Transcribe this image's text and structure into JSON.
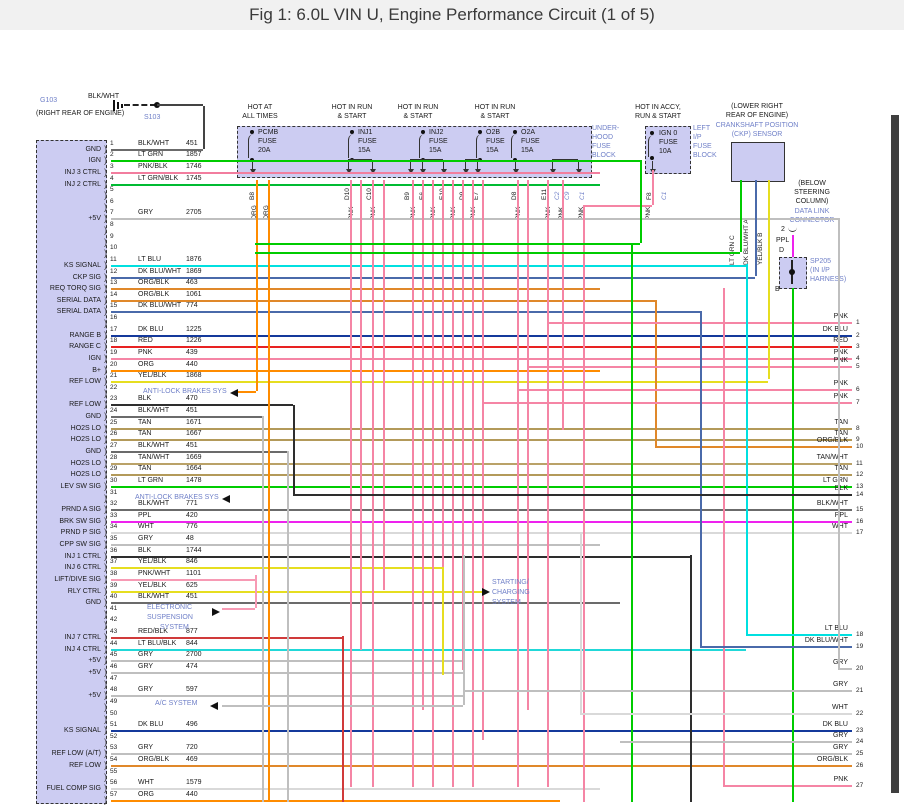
{
  "title": "Fig 1: 6.0L VIN U, Engine Performance Circuit (1 of 5)",
  "colors": {
    "BLK/WHT": "#6b6b6b",
    "BLK": "#2e2e2e",
    "LT GRN": "#00cc00",
    "LT GRN/BLK": "#00bb33",
    "PNK": "#f585a5",
    "PNK/BLK": "#f27d9e",
    "PNK/WHT": "#f79ab4",
    "GRY": "#bfbfbf",
    "LT BLU": "#00e0e0",
    "LT BLU/BLK": "#21d8d8",
    "DK BLU/WHT": "#4a6aaa",
    "DK BLU": "#14399b",
    "ORG": "#ff8c00",
    "ORG/BLK": "#e0882a",
    "RED": "#e82222",
    "RED/BLK": "#d03a3a",
    "YEL/BLK": "#e6de20",
    "TAN": "#b39a5a",
    "TAN/WHT": "#baa268",
    "PPL": "#ee22ee",
    "WHT": "#d9d9d9"
  },
  "ground": {
    "id": "G103",
    "loc": "(RIGHT REAR OF ENGINE)",
    "wire": "BLK/WHT",
    "splice": "S103"
  },
  "power_headers": {
    "hot_all": [
      "HOT AT",
      "ALL TIMES"
    ],
    "hot_run": [
      "HOT IN RUN",
      "& START"
    ],
    "hot_accy": [
      "HOT IN ACCY,",
      "RUN & START"
    ]
  },
  "tags": {
    "fuse": "FUSE",
    "pnk": "PNK",
    "org": "ORG"
  },
  "fuse_block": {
    "label": [
      "UNDER-",
      "HOOD",
      "FUSE",
      "BLOCK"
    ],
    "fuses": [
      {
        "name": "PCMB",
        "amp": "20A"
      },
      {
        "name": "INJ1",
        "amp": "15A"
      },
      {
        "name": "INJ2",
        "amp": "15A"
      },
      {
        "name": "O2B",
        "amp": "15A"
      },
      {
        "name": "O2A",
        "amp": "15A"
      }
    ],
    "pin_ids": [
      "B8",
      "D10",
      "C10",
      "B9",
      "E6",
      "E10",
      "D9",
      "E7",
      "D8",
      "E11",
      "F8"
    ],
    "connector_ids": [
      "C2",
      "C9",
      "C1",
      "C1"
    ]
  },
  "ip_fuse_block": {
    "label": [
      "LEFT",
      "I/P",
      "FUSE",
      "BLOCK"
    ],
    "fuse": {
      "name": "IGN 0",
      "amp": "10A"
    }
  },
  "ckp_sensor": {
    "loc1": "(LOWER RIGHT",
    "loc2": "REAR OF ENGINE)",
    "name1": "CRANKSHAFT POSITION",
    "name2": "(CKP) SENSOR",
    "pins": [
      {
        "wire": "LT GRN",
        "pin": "C"
      },
      {
        "wire": "DK BLU/WHT",
        "pin": "A"
      },
      {
        "wire": "YEL/BLK",
        "pin": "B"
      }
    ]
  },
  "dlc": {
    "loc1": "(BELOW",
    "loc2": "STEERING",
    "loc3": "COLUMN)",
    "name1": "DATA LINK",
    "name2": "CONNECTOR",
    "pin": "2",
    "wire": "PPL",
    "term": "D"
  },
  "splice_sp205": {
    "name": "SP205",
    "desc1": "(IN I/P",
    "desc2": "HARNESS)",
    "pin": "B"
  },
  "annotations": {
    "abs1": "ANTI-LOCK BRAKES SYS",
    "abs2": "ANTI-LOCK BRAKES SYS",
    "esus": [
      "ELECTRONIC",
      "SUSPENSION",
      "SYSTEM"
    ],
    "ac": "A/C SYSTEM",
    "startchg": [
      "STARTING/",
      "CHARGING",
      "SYSTEM"
    ]
  },
  "left_connector": {
    "pins": [
      {
        "n": 1,
        "wire": "BLK/WHT",
        "ckt": "451",
        "label": "GND"
      },
      {
        "n": 2,
        "wire": "LT GRN",
        "ckt": "1857",
        "label": "IGN"
      },
      {
        "n": 3,
        "wire": "PNK/BLK",
        "ckt": "1746",
        "label": "INJ 3 CTRL"
      },
      {
        "n": 4,
        "wire": "LT GRN/BLK",
        "ckt": "1745",
        "label": "INJ 2 CTRL"
      },
      {
        "n": 5,
        "wire": "",
        "ckt": "",
        "label": ""
      },
      {
        "n": 6,
        "wire": "",
        "ckt": "",
        "label": ""
      },
      {
        "n": 7,
        "wire": "GRY",
        "ckt": "2705",
        "label": "+5V"
      },
      {
        "n": 8,
        "wire": "",
        "ckt": "",
        "label": ""
      },
      {
        "n": 9,
        "wire": "",
        "ckt": "",
        "label": ""
      },
      {
        "n": 10,
        "wire": "",
        "ckt": "",
        "label": ""
      },
      {
        "n": 11,
        "wire": "LT BLU",
        "ckt": "1876",
        "label": "KS SIGNAL"
      },
      {
        "n": 12,
        "wire": "DK BLU/WHT",
        "ckt": "1869",
        "label": "CKP SIG"
      },
      {
        "n": 13,
        "wire": "ORG/BLK",
        "ckt": "463",
        "label": "REQ TORQ SIG"
      },
      {
        "n": 14,
        "wire": "ORG/BLK",
        "ckt": "1061",
        "label": "SERIAL DATA"
      },
      {
        "n": 15,
        "wire": "DK BLU/WHT",
        "ckt": "774",
        "label": "SERIAL DATA"
      },
      {
        "n": 16,
        "wire": "",
        "ckt": "",
        "label": ""
      },
      {
        "n": 17,
        "wire": "DK BLU",
        "ckt": "1225",
        "label": "RANGE B"
      },
      {
        "n": 18,
        "wire": "RED",
        "ckt": "1226",
        "label": "RANGE C"
      },
      {
        "n": 19,
        "wire": "PNK",
        "ckt": "439",
        "label": "IGN"
      },
      {
        "n": 20,
        "wire": "ORG",
        "ckt": "440",
        "label": "B+"
      },
      {
        "n": 21,
        "wire": "YEL/BLK",
        "ckt": "1868",
        "label": "REF LOW"
      },
      {
        "n": 22,
        "wire": "",
        "ckt": "",
        "label": "",
        "note": "abs1"
      },
      {
        "n": 23,
        "wire": "BLK",
        "ckt": "470",
        "label": "REF LOW"
      },
      {
        "n": 24,
        "wire": "BLK/WHT",
        "ckt": "451",
        "label": "GND"
      },
      {
        "n": 25,
        "wire": "TAN",
        "ckt": "1671",
        "label": "HO2S LO"
      },
      {
        "n": 26,
        "wire": "TAN",
        "ckt": "1667",
        "label": "HO2S LO"
      },
      {
        "n": 27,
        "wire": "BLK/WHT",
        "ckt": "451",
        "label": "GND"
      },
      {
        "n": 28,
        "wire": "TAN/WHT",
        "ckt": "1669",
        "label": "HO2S LO"
      },
      {
        "n": 29,
        "wire": "TAN",
        "ckt": "1664",
        "label": "HO2S LO"
      },
      {
        "n": 30,
        "wire": "LT GRN",
        "ckt": "1478",
        "label": "LEV SW SIG"
      },
      {
        "n": 31,
        "wire": "",
        "ckt": "",
        "label": "",
        "note": "abs2"
      },
      {
        "n": 32,
        "wire": "BLK/WHT",
        "ckt": "771",
        "label": "PRND A SIG"
      },
      {
        "n": 33,
        "wire": "PPL",
        "ckt": "420",
        "label": "BRK SW SIG"
      },
      {
        "n": 34,
        "wire": "WHT",
        "ckt": "776",
        "label": "PRND P SIG"
      },
      {
        "n": 35,
        "wire": "GRY",
        "ckt": "48",
        "label": "CPP SW SIG"
      },
      {
        "n": 36,
        "wire": "BLK",
        "ckt": "1744",
        "label": "INJ 1 CTRL"
      },
      {
        "n": 37,
        "wire": "YEL/BLK",
        "ckt": "846",
        "label": "INJ 6 CTRL"
      },
      {
        "n": 38,
        "wire": "PNK/WHT",
        "ckt": "1101",
        "label": "LIFT/DIVE SIG"
      },
      {
        "n": 39,
        "wire": "YEL/BLK",
        "ckt": "625",
        "label": "RLY CTRL"
      },
      {
        "n": 40,
        "wire": "BLK/WHT",
        "ckt": "451",
        "label": "GND"
      },
      {
        "n": 41,
        "wire": "",
        "ckt": "",
        "label": "",
        "note": "esus"
      },
      {
        "n": 42,
        "wire": "",
        "ckt": "",
        "label": ""
      },
      {
        "n": 43,
        "wire": "RED/BLK",
        "ckt": "877",
        "label": "INJ 7 CTRL"
      },
      {
        "n": 44,
        "wire": "LT BLU/BLK",
        "ckt": "844",
        "label": "INJ 4 CTRL"
      },
      {
        "n": 45,
        "wire": "GRY",
        "ckt": "2700",
        "label": "+5V"
      },
      {
        "n": 46,
        "wire": "GRY",
        "ckt": "474",
        "label": "+5V"
      },
      {
        "n": 47,
        "wire": "",
        "ckt": "",
        "label": ""
      },
      {
        "n": 48,
        "wire": "GRY",
        "ckt": "597",
        "label": "+5V"
      },
      {
        "n": 49,
        "wire": "",
        "ckt": "",
        "label": "",
        "note": "ac"
      },
      {
        "n": 50,
        "wire": "",
        "ckt": "",
        "label": ""
      },
      {
        "n": 51,
        "wire": "DK BLU",
        "ckt": "496",
        "label": "KS SIGNAL"
      },
      {
        "n": 52,
        "wire": "",
        "ckt": "",
        "label": ""
      },
      {
        "n": 53,
        "wire": "GRY",
        "ckt": "720",
        "label": "REF LOW (A/T)"
      },
      {
        "n": 54,
        "wire": "ORG/BLK",
        "ckt": "469",
        "label": "REF LOW"
      },
      {
        "n": 55,
        "wire": "",
        "ckt": "",
        "label": ""
      },
      {
        "n": 56,
        "wire": "WHT",
        "ckt": "1579",
        "label": "FUEL COMP SIG"
      },
      {
        "n": 57,
        "wire": "ORG",
        "ckt": "440",
        "label": ""
      }
    ]
  },
  "right_pins": [
    {
      "n": "1",
      "color": "PNK"
    },
    {
      "n": "2",
      "color": "DK BLU"
    },
    {
      "n": "3",
      "color": "RED"
    },
    {
      "n": "4",
      "color": "PNK"
    },
    {
      "n": "5",
      "color": "PNK"
    },
    {
      "n": "6",
      "color": "PNK"
    },
    {
      "n": "7",
      "color": "PNK"
    },
    {
      "n": "8",
      "color": "TAN"
    },
    {
      "n": "9",
      "color": "TAN"
    },
    {
      "n": "10",
      "color": "ORG/BLK"
    },
    {
      "n": "11",
      "color": "TAN/WHT"
    },
    {
      "n": "12",
      "color": "TAN"
    },
    {
      "n": "13",
      "color": "LT GRN"
    },
    {
      "n": "14",
      "color": "BLK"
    },
    {
      "n": "15",
      "color": "BLK/WHT"
    },
    {
      "n": "16",
      "color": "PPL"
    },
    {
      "n": "17",
      "color": "WHT"
    },
    {
      "n": "18",
      "color": "LT BLU"
    },
    {
      "n": "19",
      "color": "DK BLU/WHT"
    },
    {
      "n": "20",
      "color": "GRY"
    },
    {
      "n": "21",
      "color": "GRY"
    },
    {
      "n": "22",
      "color": "WHT"
    },
    {
      "n": "23",
      "color": "DK BLU"
    },
    {
      "n": "24",
      "color": "GRY"
    },
    {
      "n": "25",
      "color": "GRY"
    },
    {
      "n": "26",
      "color": "ORG/BLK"
    },
    {
      "n": "27",
      "color": "PNK"
    }
  ]
}
